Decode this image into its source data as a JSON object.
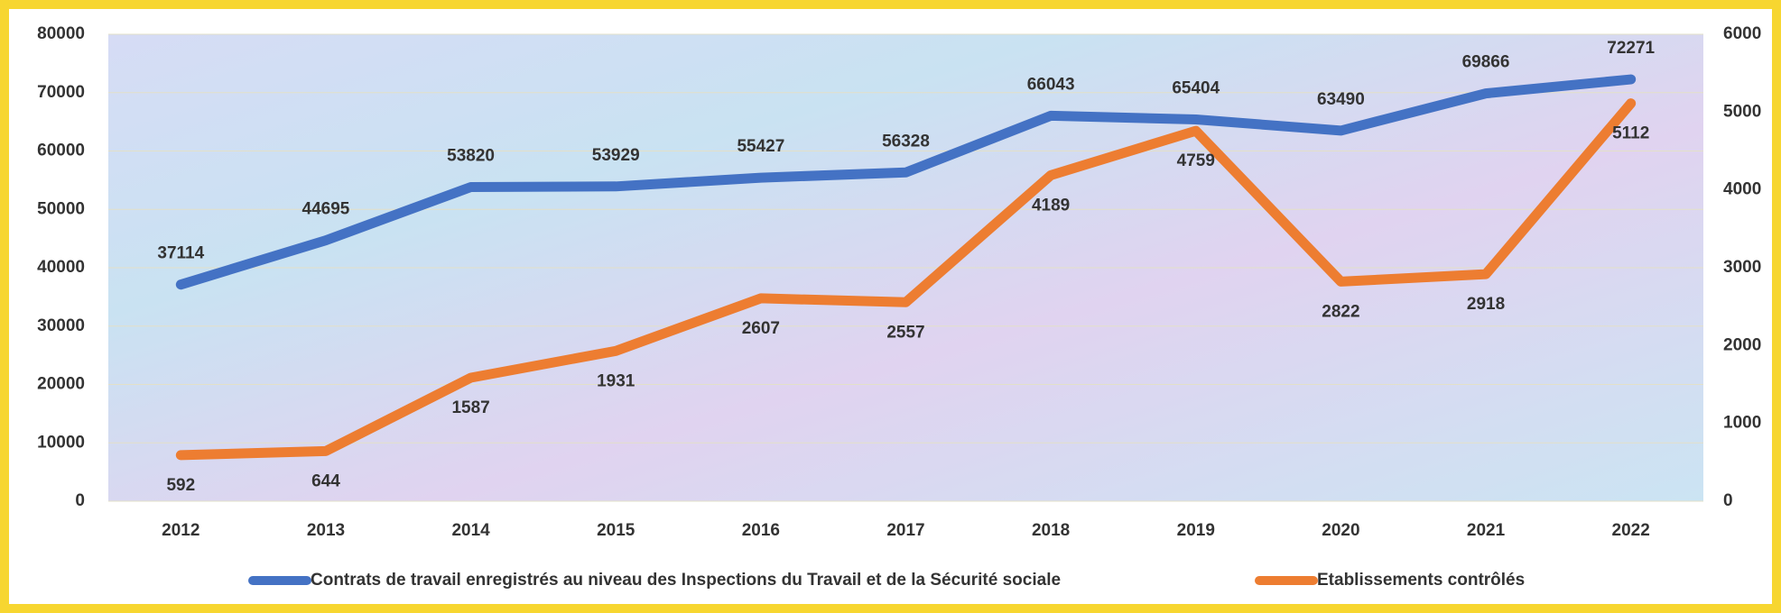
{
  "chart_data": {
    "type": "line",
    "categories": [
      "2012",
      "2013",
      "2014",
      "2015",
      "2016",
      "2017",
      "2018",
      "2019",
      "2020",
      "2021",
      "2022"
    ],
    "series": [
      {
        "name": "Contrats de travail enregistrés au niveau des Inspections du Travail et de la Sécurité sociale",
        "color": "#4472c4",
        "values": [
          37114,
          44695,
          53820,
          53929,
          55427,
          56328,
          66043,
          65404,
          63490,
          69866,
          72271
        ]
      },
      {
        "name": "Etablissements contrôlés",
        "color": "#ed7d31",
        "axis": "y2",
        "values": [
          592,
          644,
          1587,
          1931,
          2607,
          2557,
          4189,
          4759,
          2822,
          2918,
          5112
        ]
      }
    ],
    "ylim": [
      0,
      80000
    ],
    "yticks": [
      0,
      10000,
      20000,
      30000,
      40000,
      50000,
      60000,
      70000,
      80000
    ],
    "y2lim": [
      0,
      6000
    ],
    "y2ticks": [
      0,
      1000,
      2000,
      3000,
      4000,
      5000,
      6000
    ],
    "grid": true,
    "legend": "bottom"
  }
}
